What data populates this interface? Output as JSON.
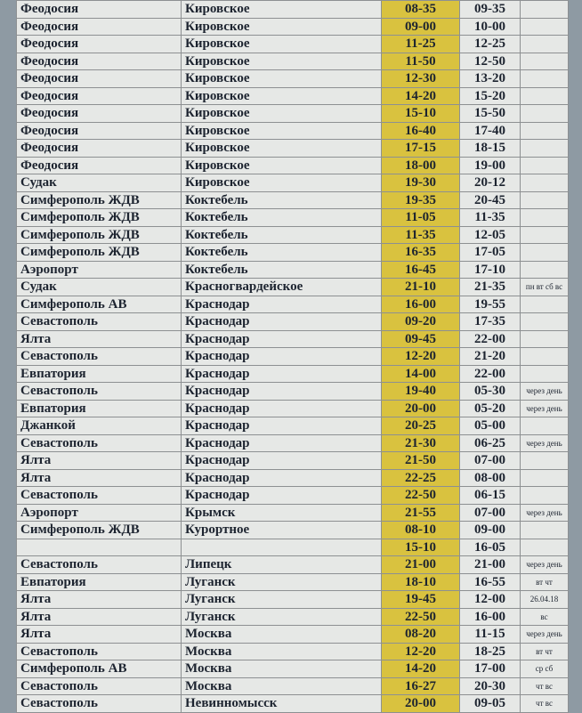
{
  "table": {
    "rows": [
      {
        "from": "Феодосия",
        "to": "Кировское",
        "dep": "08-35",
        "arr": "09-35"
      },
      {
        "from": "Феодосия",
        "to": "Кировское",
        "dep": "09-00",
        "arr": "10-00"
      },
      {
        "from": "Феодосия",
        "to": "Кировское",
        "dep": "11-25",
        "arr": "12-25"
      },
      {
        "from": "Феодосия",
        "to": "Кировское",
        "dep": "11-50",
        "arr": "12-50"
      },
      {
        "from": "Феодосия",
        "to": "Кировское",
        "dep": "12-30",
        "arr": "13-20"
      },
      {
        "from": "Феодосия",
        "to": "Кировское",
        "dep": "14-20",
        "arr": "15-20"
      },
      {
        "from": "Феодосия",
        "to": "Кировское",
        "dep": "15-10",
        "arr": "15-50"
      },
      {
        "from": "Феодосия",
        "to": "Кировское",
        "dep": "16-40",
        "arr": "17-40"
      },
      {
        "from": "Феодосия",
        "to": "Кировское",
        "dep": "17-15",
        "arr": "18-15"
      },
      {
        "from": "Феодосия",
        "to": "Кировское",
        "dep": "18-00",
        "arr": "19-00"
      },
      {
        "from": "Судак",
        "to": "Кировское",
        "dep": "19-30",
        "arr": "20-12"
      },
      {
        "from": "Симферополь ЖДВ",
        "to": "Коктебель",
        "dep": "19-35",
        "arr": "20-45"
      },
      {
        "from": "Симферополь ЖДВ",
        "to": "Коктебель",
        "dep": "11-05",
        "arr": "11-35"
      },
      {
        "from": "Симферополь ЖДВ",
        "to": "Коктебель",
        "dep": "11-35",
        "arr": "12-05"
      },
      {
        "from": "Симферополь ЖДВ",
        "to": "Коктебель",
        "dep": "16-35",
        "arr": "17-05"
      },
      {
        "from": "Аэропорт",
        "to": "Коктебель",
        "dep": "16-45",
        "arr": "17-10"
      },
      {
        "from": "Судак",
        "to": "Красногвардейское",
        "dep": "21-10",
        "arr": "21-35",
        "note": "пн вт сб вс"
      },
      {
        "from": "Симферополь АВ",
        "to": "Краснодар",
        "dep": "16-00",
        "arr": "19-55"
      },
      {
        "from": "Севастополь",
        "to": "Краснодар",
        "dep": "09-20",
        "arr": "17-35"
      },
      {
        "from": "Ялта",
        "to": "Краснодар",
        "dep": "09-45",
        "arr": "22-00"
      },
      {
        "from": "Севастополь",
        "to": "Краснодар",
        "dep": "12-20",
        "arr": "21-20"
      },
      {
        "from": "Евпатория",
        "to": "Краснодар",
        "dep": "14-00",
        "arr": "22-00"
      },
      {
        "from": "Севастополь",
        "to": "Краснодар",
        "dep": "19-40",
        "arr": "05-30",
        "note": "через день"
      },
      {
        "from": "Евпатория",
        "to": "Краснодар",
        "dep": "20-00",
        "arr": "05-20",
        "note": "через день"
      },
      {
        "from": "Джанкой",
        "to": "Краснодар",
        "dep": "20-25",
        "arr": "05-00"
      },
      {
        "from": "Севастополь",
        "to": "Краснодар",
        "dep": "21-30",
        "arr": "06-25",
        "note": "через день"
      },
      {
        "from": "Ялта",
        "to": "Краснодар",
        "dep": "21-50",
        "arr": "07-00"
      },
      {
        "from": "Ялта",
        "to": "Краснодар",
        "dep": "22-25",
        "arr": "08-00"
      },
      {
        "from": "Севастополь",
        "to": "Краснодар",
        "dep": "22-50",
        "arr": "06-15"
      },
      {
        "from": "Аэропорт",
        "to": "Крымск",
        "dep": "21-55",
        "arr": "07-00",
        "note": "через день"
      },
      {
        "from": "Симферополь ЖДВ",
        "to": "Курортное",
        "dep": "08-10",
        "arr": "09-00"
      },
      {
        "dep": "15-10",
        "arr": "16-05"
      },
      {
        "from": "Севастополь",
        "to": "Липецк",
        "dep": "21-00",
        "arr": "21-00",
        "note": "через день"
      },
      {
        "from": "Евпатория",
        "to": "Луганск",
        "dep": "18-10",
        "arr": "16-55",
        "note": "вт чт"
      },
      {
        "from": "Ялта",
        "to": "Луганск",
        "dep": "19-45",
        "arr": "12-00",
        "note": "26.04.18"
      },
      {
        "from": "Ялта",
        "to": "Луганск",
        "dep": "22-50",
        "arr": "16-00",
        "note": "вс"
      },
      {
        "from": "Ялта",
        "to": "Москва",
        "dep": "08-20",
        "arr": "11-15",
        "note": "через день"
      },
      {
        "from": "Севастополь",
        "to": "Москва",
        "dep": "12-20",
        "arr": "18-25",
        "note": "вт чт"
      },
      {
        "from": "Симферополь АВ",
        "to": "Москва",
        "dep": "14-20",
        "arr": "17-00",
        "note": "ср сб"
      },
      {
        "from": "Севастополь",
        "to": "Москва",
        "dep": "16-27",
        "arr": "20-30",
        "note": "чт вс"
      },
      {
        "from": "Севастополь",
        "to": "Невинномысск",
        "dep": "20-00",
        "arr": "09-05",
        "note": "чт вс"
      }
    ]
  }
}
